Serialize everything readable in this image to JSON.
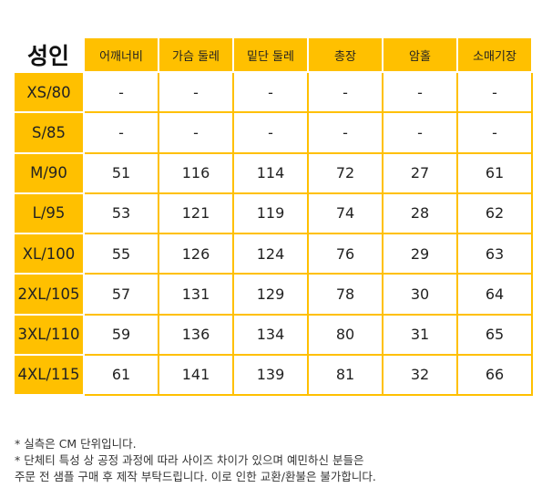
{
  "table": {
    "title": "성인",
    "headers": [
      "어깨너비",
      "가슴 둘레",
      "밑단 둘레",
      "총장",
      "암홀",
      "소매기장"
    ],
    "rows": [
      {
        "size": "XS/80",
        "values": [
          "-",
          "-",
          "-",
          "-",
          "-",
          "-"
        ]
      },
      {
        "size": "S/85",
        "values": [
          "-",
          "-",
          "-",
          "-",
          "-",
          "-"
        ]
      },
      {
        "size": "M/90",
        "values": [
          "51",
          "116",
          "114",
          "72",
          "27",
          "61"
        ]
      },
      {
        "size": "L/95",
        "values": [
          "53",
          "121",
          "119",
          "74",
          "28",
          "62"
        ]
      },
      {
        "size": "XL/100",
        "values": [
          "55",
          "126",
          "124",
          "76",
          "29",
          "63"
        ]
      },
      {
        "size": "2XL/105",
        "values": [
          "57",
          "131",
          "129",
          "78",
          "30",
          "64"
        ]
      },
      {
        "size": "3XL/110",
        "values": [
          "59",
          "136",
          "134",
          "80",
          "31",
          "65"
        ]
      },
      {
        "size": "4XL/115",
        "values": [
          "61",
          "141",
          "139",
          "81",
          "32",
          "66"
        ]
      }
    ]
  },
  "notes": [
    "* 실측은 CM 단위입니다.",
    "* 단체티 특성 상 공정 과정에 따라 사이즈 차이가 있으며 예민하신 분들은",
    "주문 전 샘플 구매 후 제작 부탁드립니다. 이로 인한 교환/환불은 불가합니다."
  ],
  "colors": {
    "accent": "#FFC000",
    "background": "#FFFFFF",
    "text": "#222222"
  }
}
